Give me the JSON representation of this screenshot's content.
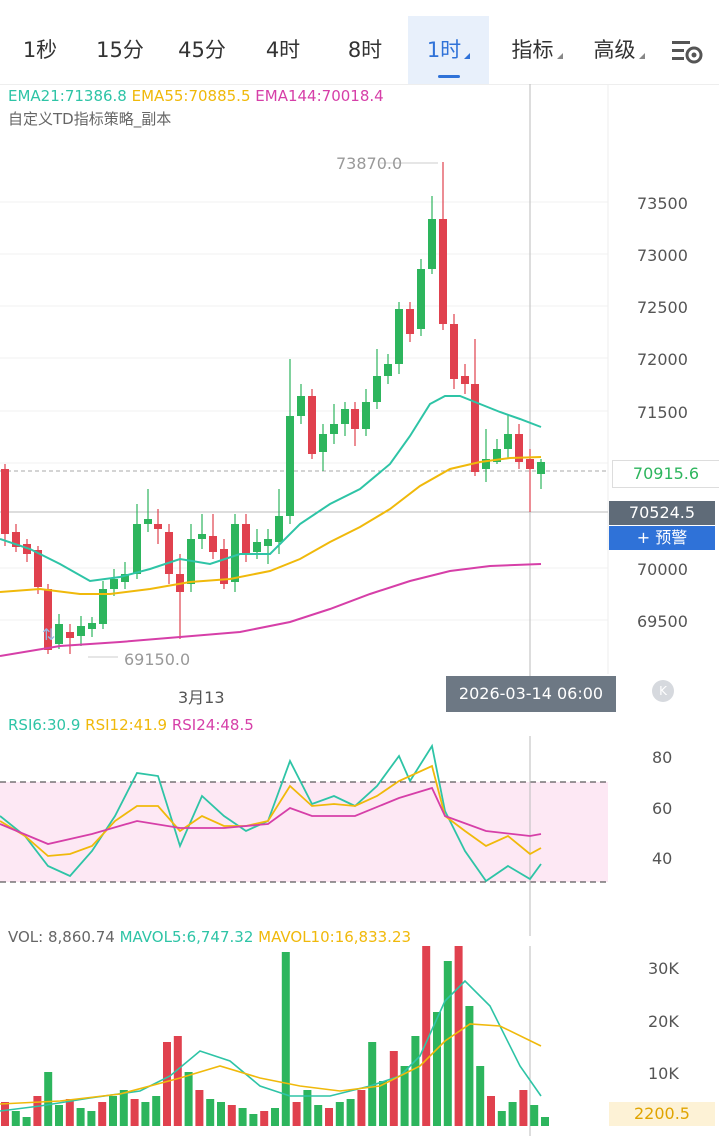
{
  "timeframes": [
    {
      "label": "1秒"
    },
    {
      "label": "15分"
    },
    {
      "label": "45分"
    },
    {
      "label": "4时"
    },
    {
      "label": "8时"
    },
    {
      "label": "1时",
      "active": true
    },
    {
      "label": "指标",
      "dropdown": true
    },
    {
      "label": "高级",
      "dropdown": true
    }
  ],
  "ema_legend": {
    "ema21": "EMA21:71386.8",
    "ema55": "EMA55:70885.5",
    "ema144": "EMA144:70018.4",
    "colors": {
      "ema21": "#2ec4a6",
      "ema55": "#f0b90b",
      "ema144": "#d63fa8"
    }
  },
  "strategy_name": "自定义TD指标策略_副本",
  "price_axis": [
    "73500",
    "73000",
    "72500",
    "72000",
    "71500",
    "70000",
    "69500"
  ],
  "high_label": "73870.0",
  "low_label": "69150.0",
  "last_price": "70915.6",
  "cross_price": "70524.5",
  "alert_button": "+ 预警",
  "date_label": "3月13",
  "crosshair_time": "2026-03-14 06:00",
  "rsi_legend": {
    "rsi6": "RSI6:30.9",
    "rsi12": "RSI12:41.9",
    "rsi24": "RSI24:48.5"
  },
  "rsi_axis": [
    "80",
    "60",
    "40"
  ],
  "vol_legend": {
    "vol": "VOL: 8,860.74",
    "mavol5": "MAVOL5:6,747.32",
    "mavol10": "MAVOL10:16,833.23"
  },
  "vol_axis": [
    "30K",
    "20K",
    "10K"
  ],
  "vol_current": "2200.5",
  "colors": {
    "up": "#2db55d",
    "down": "#e0414e",
    "accent": "#2f72d8"
  }
}
